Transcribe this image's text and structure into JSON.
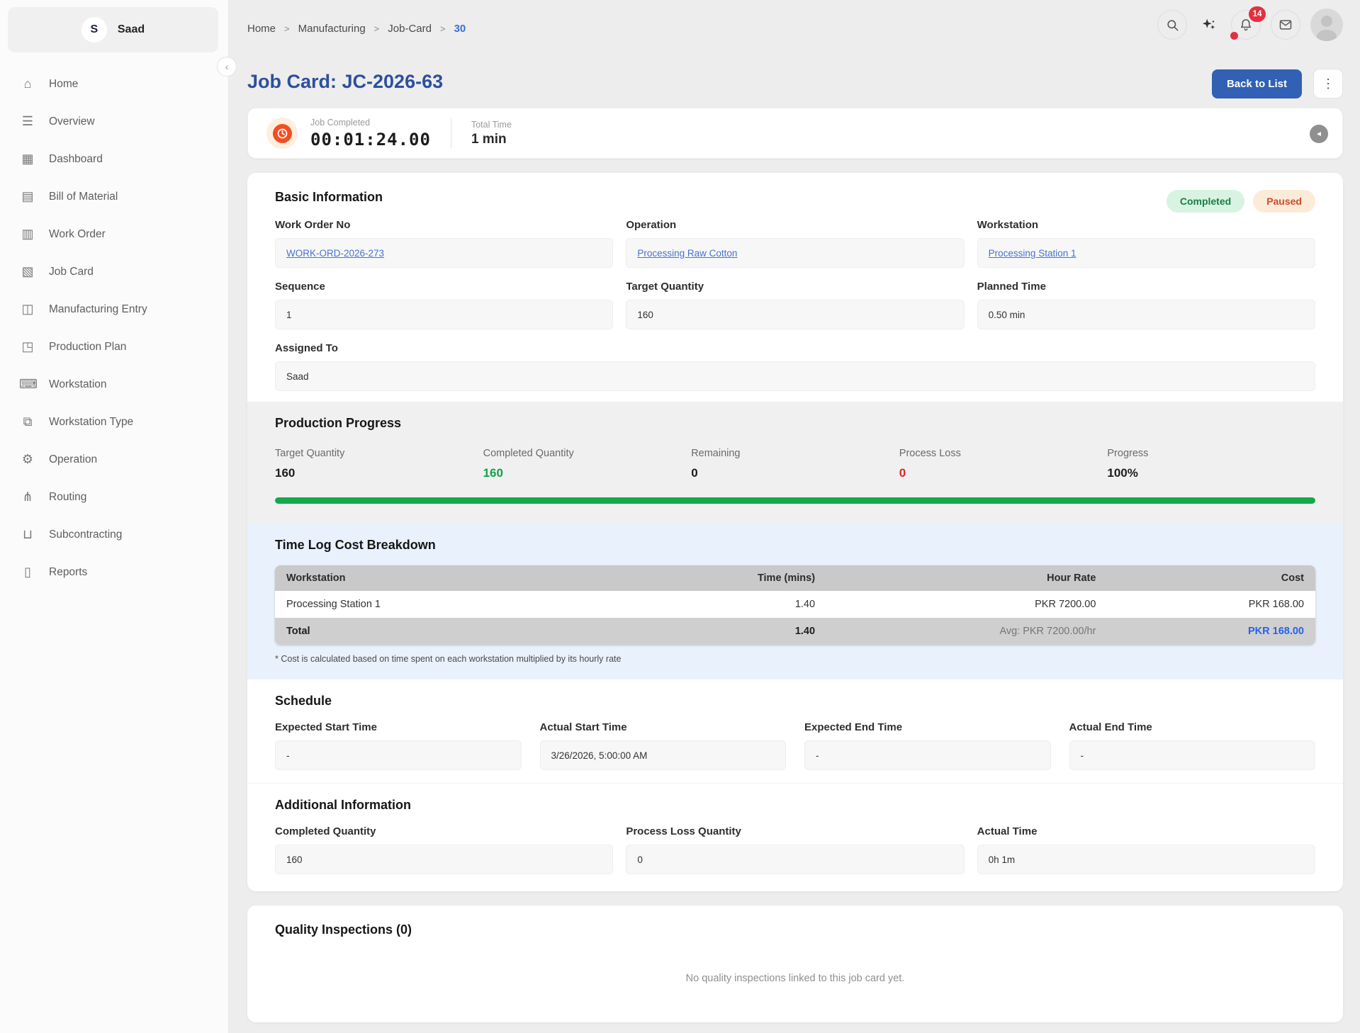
{
  "sidebar": {
    "user_initial": "S",
    "user_name": "Saad",
    "items": [
      {
        "icon": "⌂",
        "label": "Home"
      },
      {
        "icon": "☰",
        "label": "Overview"
      },
      {
        "icon": "▦",
        "label": "Dashboard"
      },
      {
        "icon": "▤",
        "label": "Bill of Material"
      },
      {
        "icon": "▥",
        "label": "Work Order"
      },
      {
        "icon": "▧",
        "label": "Job Card"
      },
      {
        "icon": "◫",
        "label": "Manufacturing Entry"
      },
      {
        "icon": "◳",
        "label": "Production Plan"
      },
      {
        "icon": "⌨",
        "label": "Workstation"
      },
      {
        "icon": "⧉",
        "label": "Workstation Type"
      },
      {
        "icon": "⚙",
        "label": "Operation"
      },
      {
        "icon": "⋔",
        "label": "Routing"
      },
      {
        "icon": "⊔",
        "label": "Subcontracting"
      },
      {
        "icon": "▯",
        "label": "Reports"
      }
    ]
  },
  "topbar": {
    "breadcrumb": {
      "items": [
        "Home",
        "Manufacturing",
        "Job-Card"
      ],
      "separator": ">",
      "current": "30"
    },
    "notification_count": "14"
  },
  "page": {
    "title": "Job Card: JC-2026-63",
    "back_button": "Back to List",
    "kebab": "⋮"
  },
  "timer": {
    "job_completed_label": "Job Completed",
    "time": "00:01:24.00",
    "total_time_label": "Total Time",
    "total_time": "1 min",
    "collapse_glyph": "◄"
  },
  "basic_info": {
    "title": "Basic Information",
    "badges": [
      {
        "label": "Completed"
      },
      {
        "label": "Paused"
      }
    ],
    "fields": [
      {
        "label": "Work Order No",
        "value": "WORK-ORD-2026-273"
      },
      {
        "label": "Operation",
        "value": "Processing Raw Cotton"
      },
      {
        "label": "Workstation",
        "value": "Processing Station 1"
      },
      {
        "label": "Sequence",
        "value": "1"
      },
      {
        "label": "Target Quantity",
        "value": "160"
      },
      {
        "label": "Planned Time",
        "value": "0.50 min"
      },
      {
        "label": "Assigned To",
        "value": "Saad"
      }
    ]
  },
  "production_progress": {
    "title": "Production Progress",
    "stats": [
      {
        "label": "Target Quantity",
        "value": "160"
      },
      {
        "label": "Completed Quantity",
        "value": "160"
      },
      {
        "label": "Remaining",
        "value": "0"
      },
      {
        "label": "Process Loss",
        "value": "0"
      },
      {
        "label": "Progress",
        "value": "100%"
      }
    ],
    "progress_percent": 100
  },
  "time_log": {
    "title": "Time Log Cost Breakdown",
    "columns": [
      "Workstation",
      "Time (mins)",
      "Hour Rate",
      "Cost"
    ],
    "rows": [
      {
        "workstation": "Processing Station 1",
        "time": "1.40",
        "hour_rate": "PKR 7200.00",
        "cost": "PKR 168.00"
      }
    ],
    "total": {
      "label": "Total",
      "time": "1.40",
      "avg_rate": "Avg: PKR 7200.00/hr",
      "cost": "PKR 168.00"
    },
    "footnote": "* Cost is calculated based on time spent on each workstation multiplied by its hourly rate"
  },
  "schedule": {
    "title": "Schedule",
    "fields": [
      {
        "label": "Expected Start Time",
        "value": "-"
      },
      {
        "label": "Actual Start Time",
        "value": "3/26/2026, 5:00:00 AM"
      },
      {
        "label": "Expected End Time",
        "value": "-"
      },
      {
        "label": "Actual End Time",
        "value": "-"
      }
    ]
  },
  "additional_info": {
    "title": "Additional Information",
    "fields": [
      {
        "label": "Completed Quantity",
        "value": "160"
      },
      {
        "label": "Process Loss Quantity",
        "value": "0"
      },
      {
        "label": "Actual Time",
        "value": "0h 1m"
      }
    ]
  },
  "quality": {
    "title": "Quality Inspections (0)",
    "empty_message": "No quality inspections linked to this job card yet."
  },
  "colors": {
    "accent_blue": "#3160b5",
    "title_blue": "#2d4f9e",
    "link_blue": "#4673d3",
    "progress_green": "#12a948",
    "loss_red": "#e02424",
    "cost_total_blue": "#2563eb",
    "badge_completed_bg": "#d8f3e2",
    "badge_completed_text": "#1c7c44",
    "badge_paused_bg": "#fcebd9",
    "badge_paused_text": "#cc4b28",
    "timer_orange": "#f04e23",
    "notification_red": "#e3303f"
  }
}
